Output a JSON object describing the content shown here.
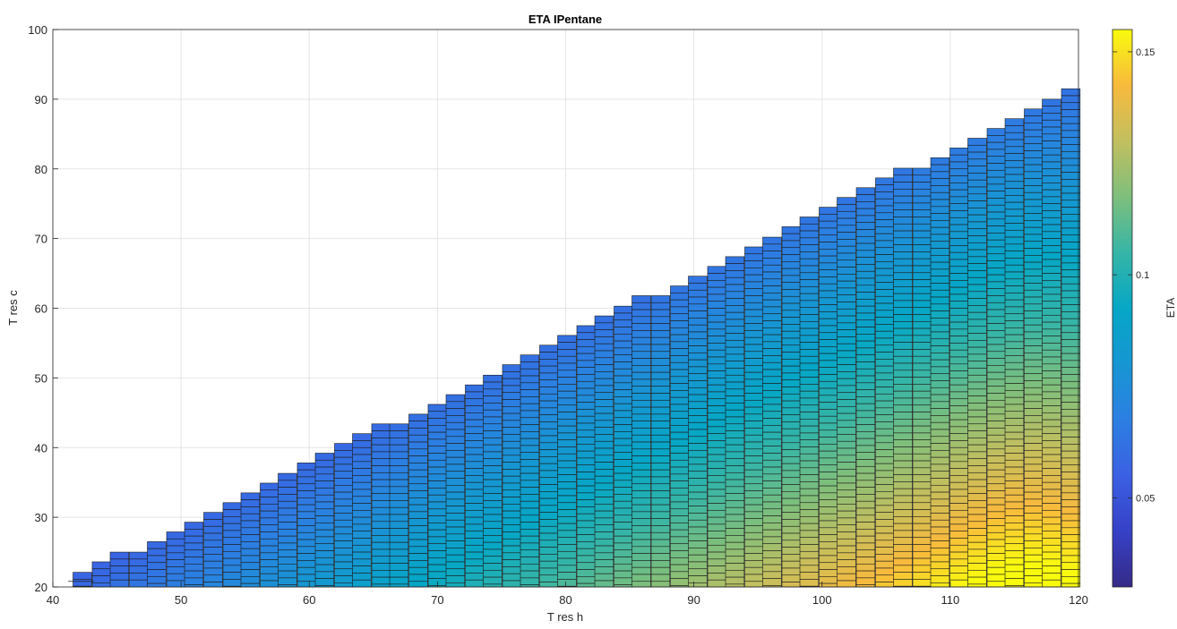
{
  "chart_data": {
    "type": "heatmap",
    "title": "ETA IPentane",
    "xlabel": "T res h",
    "ylabel": "T res c",
    "xlim": [
      40,
      120
    ],
    "ylim": [
      20,
      100
    ],
    "xticks": [
      40,
      50,
      60,
      70,
      80,
      90,
      100,
      110,
      120
    ],
    "yticks": [
      20,
      30,
      40,
      50,
      60,
      70,
      80,
      90,
      100
    ],
    "grid": true,
    "colormap": "parula",
    "colorbar": {
      "label": "ETA",
      "range": [
        0.03,
        0.155
      ],
      "ticks": [
        0.05,
        0.1,
        0.15
      ],
      "tick_labels": [
        "0.05",
        "0.1",
        "0.15"
      ]
    },
    "x_columns": {
      "start": 42.3,
      "end": 119.4,
      "step": 1.454
    },
    "upper_edge_t_res_c": [
      [
        42.3,
        22.1
      ],
      [
        43.8,
        23.6
      ],
      [
        45.2,
        25.0
      ],
      [
        46.7,
        25.0
      ],
      [
        48.1,
        26.5
      ],
      [
        49.6,
        27.9
      ],
      [
        51.0,
        29.3
      ],
      [
        52.5,
        30.7
      ],
      [
        54.0,
        32.1
      ],
      [
        55.4,
        33.5
      ],
      [
        56.9,
        34.9
      ],
      [
        58.3,
        36.3
      ],
      [
        59.8,
        37.8
      ],
      [
        61.2,
        39.2
      ],
      [
        62.7,
        40.6
      ],
      [
        64.1,
        42.0
      ],
      [
        65.6,
        43.4
      ],
      [
        67.0,
        43.4
      ],
      [
        68.5,
        44.8
      ],
      [
        70.0,
        46.2
      ],
      [
        71.4,
        47.6
      ],
      [
        72.9,
        49.0
      ],
      [
        74.3,
        50.4
      ],
      [
        75.8,
        51.9
      ],
      [
        77.2,
        53.3
      ],
      [
        78.7,
        54.7
      ],
      [
        80.1,
        56.1
      ],
      [
        81.6,
        57.5
      ],
      [
        83.0,
        58.9
      ],
      [
        84.5,
        60.3
      ],
      [
        85.9,
        61.8
      ],
      [
        87.4,
        61.8
      ],
      [
        88.9,
        63.2
      ],
      [
        90.3,
        64.6
      ],
      [
        91.8,
        66.0
      ],
      [
        93.2,
        67.4
      ],
      [
        94.7,
        68.8
      ],
      [
        96.1,
        70.2
      ],
      [
        97.6,
        71.7
      ],
      [
        99.0,
        73.1
      ],
      [
        100.5,
        74.5
      ],
      [
        101.9,
        75.9
      ],
      [
        103.4,
        77.3
      ],
      [
        104.9,
        78.7
      ],
      [
        106.3,
        80.1
      ],
      [
        107.8,
        80.1
      ],
      [
        109.2,
        81.6
      ],
      [
        110.7,
        83.0
      ],
      [
        112.1,
        84.4
      ],
      [
        113.6,
        85.8
      ],
      [
        115.0,
        87.2
      ],
      [
        116.5,
        88.6
      ],
      [
        117.9,
        90.0
      ],
      [
        119.4,
        91.5
      ]
    ],
    "row_height_t_res_c": 1.0,
    "eta_trend": {
      "min": 0.03,
      "max": 0.155,
      "peak_at": [
        116,
        22
      ],
      "low_along": "upper diagonal edge (T res c close to T res h)"
    }
  }
}
